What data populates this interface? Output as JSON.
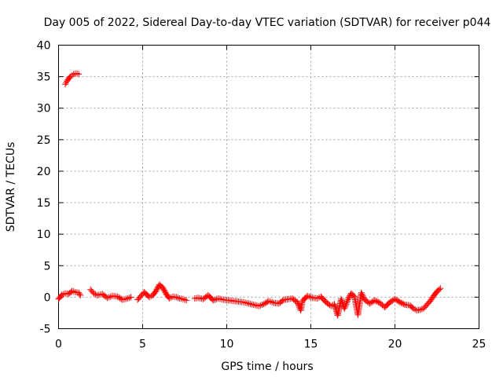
{
  "chart_data": {
    "type": "scatter",
    "title": "Day 005 of 2022, Sidereal Day-to-day VTEC variation (SDTVAR) for receiver p044",
    "xlabel": "GPS time / hours",
    "ylabel": "SDTVAR / TECUs",
    "xlim": [
      0,
      25
    ],
    "ylim": [
      -5,
      40
    ],
    "xticks": [
      0,
      5,
      10,
      15,
      20,
      25
    ],
    "yticks": [
      -5,
      0,
      5,
      10,
      15,
      20,
      25,
      30,
      35,
      40
    ],
    "grid": true,
    "marker": "plus",
    "color": "#ff0000",
    "series": [
      {
        "x": [
          0.4,
          0.5,
          0.6,
          0.7,
          0.8,
          0.9,
          1.0,
          1.1,
          1.2
        ],
        "y": [
          33.8,
          34.3,
          34.7,
          35.0,
          35.2,
          35.4,
          35.5,
          35.5,
          35.4
        ]
      },
      {
        "x": [
          0.0,
          0.2,
          0.4,
          0.6,
          0.8,
          1.0,
          1.2,
          1.3,
          1.9,
          2.1,
          2.3,
          2.6,
          2.9,
          3.2,
          3.5,
          3.8,
          4.1,
          4.3,
          4.7,
          4.9,
          5.1,
          5.4,
          5.6,
          5.8,
          6.0,
          6.2,
          6.4,
          6.6,
          6.8,
          7.0,
          7.2,
          7.4,
          7.6,
          8.1,
          8.3,
          8.6,
          8.9,
          9.2,
          9.5,
          9.8,
          10.1,
          10.4,
          10.7,
          11.0,
          11.3,
          11.6,
          11.9,
          12.2,
          12.5,
          12.8,
          13.1,
          13.4,
          13.7,
          13.9,
          14.2,
          14.4,
          14.5,
          14.8,
          15.1,
          15.4,
          15.6,
          15.9,
          16.2,
          16.4,
          16.6,
          16.8,
          17.0,
          17.2,
          17.4,
          17.6,
          17.8,
          18.0,
          18.2,
          18.5,
          18.8,
          19.1,
          19.4,
          19.7,
          20.0,
          20.3,
          20.6,
          20.9,
          21.1,
          21.3,
          21.5,
          21.7,
          21.9,
          22.1,
          22.3,
          22.5,
          22.7
        ],
        "y": [
          -0.3,
          0.4,
          0.6,
          0.5,
          1.0,
          0.8,
          0.7,
          0.3,
          1.2,
          0.6,
          0.3,
          0.5,
          -0.1,
          0.2,
          0.1,
          -0.4,
          -0.2,
          0.0,
          -0.4,
          0.2,
          0.8,
          0.0,
          0.3,
          1.0,
          2.0,
          1.5,
          0.5,
          -0.2,
          0.1,
          0.0,
          -0.2,
          -0.3,
          -0.5,
          -0.2,
          -0.1,
          -0.3,
          0.3,
          -0.5,
          -0.2,
          -0.4,
          -0.5,
          -0.6,
          -0.7,
          -0.8,
          -1.0,
          -1.2,
          -1.4,
          -1.1,
          -0.6,
          -0.9,
          -1.0,
          -0.4,
          -0.3,
          -0.2,
          -0.8,
          -2.1,
          -0.6,
          0.2,
          -0.1,
          -0.2,
          0.1,
          -0.8,
          -1.4,
          -1.1,
          -2.9,
          -0.3,
          -1.8,
          -0.4,
          0.6,
          0.1,
          -2.8,
          0.7,
          -0.4,
          -1.0,
          -0.5,
          -0.9,
          -1.6,
          -0.8,
          -0.3,
          -0.8,
          -1.2,
          -1.3,
          -1.8,
          -2.1,
          -2.0,
          -1.8,
          -1.2,
          -0.6,
          0.2,
          0.9,
          1.4
        ]
      }
    ]
  }
}
